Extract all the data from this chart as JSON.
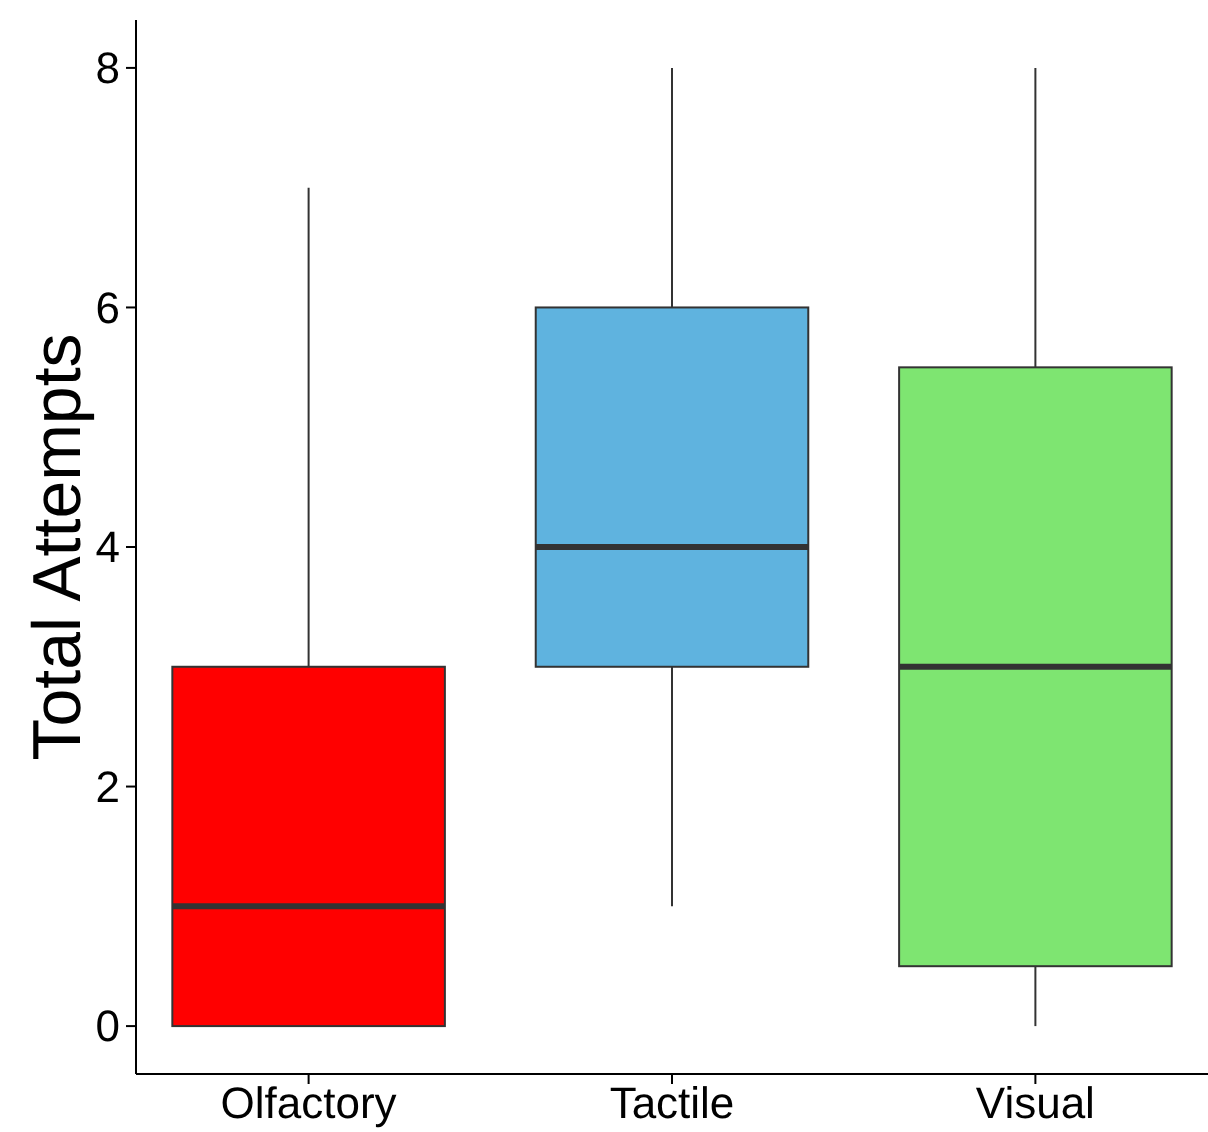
{
  "chart_data": {
    "type": "box",
    "ylabel": "Total Attempts",
    "categories": [
      "Olfactory",
      "Tactile",
      "Visual"
    ],
    "colors": [
      "#ff0000",
      "#5fb3df",
      "#7ee571"
    ],
    "boxes": [
      {
        "low": 0,
        "q1": 0,
        "median": 1,
        "q3": 3,
        "high": 7
      },
      {
        "low": 1,
        "q1": 3,
        "median": 4,
        "q3": 6,
        "high": 8
      },
      {
        "low": 0,
        "q1": 0.5,
        "median": 3,
        "q3": 5.5,
        "high": 8
      }
    ],
    "ylim": [
      -0.4,
      8.4
    ],
    "yticks": [
      0,
      2,
      4,
      6,
      8
    ],
    "grid": false
  }
}
